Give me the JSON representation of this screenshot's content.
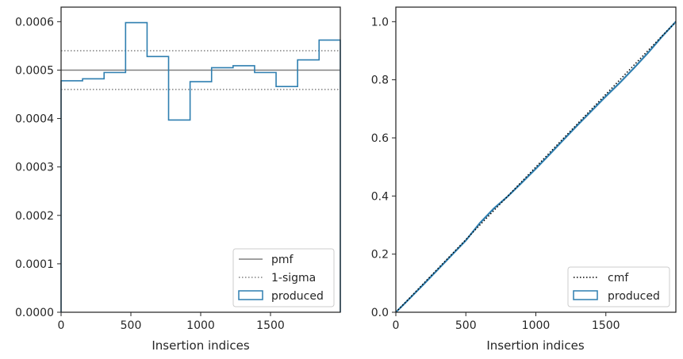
{
  "chart_data": [
    {
      "type": "histogram-step",
      "xlabel": "Insertion indices",
      "ylabel": "",
      "xlim": [
        0,
        2000
      ],
      "ylim": [
        0,
        0.00063
      ],
      "xticks": [
        0,
        500,
        1000,
        1500
      ],
      "xtick_labels": [
        "0",
        "500",
        "1000",
        "1500"
      ],
      "yticks": [
        0,
        0.0001,
        0.0002,
        0.0003,
        0.0004,
        0.0005,
        0.0006
      ],
      "ytick_labels": [
        "0.0000",
        "0.0001",
        "0.0002",
        "0.0003",
        "0.0004",
        "0.0005",
        "0.0006"
      ],
      "grid": false,
      "legend_position": "lower-right",
      "reference_lines": [
        {
          "name": "pmf",
          "y": 0.0005,
          "style": "solid",
          "color": "#808080"
        },
        {
          "name": "1-sigma",
          "y": 0.00054,
          "style": "dotted",
          "color": "#808080"
        },
        {
          "name": "1-sigma",
          "y": 0.00046,
          "style": "dotted",
          "color": "#808080"
        }
      ],
      "series": [
        {
          "name": "produced",
          "color": "#2f7fb0",
          "bin_edges": [
            0,
            154,
            308,
            462,
            616,
            770,
            924,
            1078,
            1232,
            1386,
            1540,
            1694,
            1848,
            2000
          ],
          "values": [
            0.000478,
            0.000482,
            0.000495,
            0.000598,
            0.000528,
            0.000397,
            0.000476,
            0.000505,
            0.000509,
            0.000495,
            0.000466,
            0.000521,
            0.000562
          ]
        }
      ],
      "legend": [
        "pmf",
        "1-sigma",
        "produced"
      ]
    },
    {
      "type": "line",
      "xlabel": "Insertion indices",
      "ylabel": "",
      "xlim": [
        0,
        2000
      ],
      "ylim": [
        0,
        1.05
      ],
      "xticks": [
        0,
        500,
        1000,
        1500
      ],
      "xtick_labels": [
        "0",
        "500",
        "1000",
        "1500"
      ],
      "yticks": [
        0,
        0.2,
        0.4,
        0.6,
        0.8,
        1.0
      ],
      "ytick_labels": [
        "0.0",
        "0.2",
        "0.4",
        "0.6",
        "0.8",
        "1.0"
      ],
      "grid": false,
      "legend_position": "lower-right",
      "series": [
        {
          "name": "cmf",
          "style": "dotted",
          "color": "#000000",
          "x": [
            0,
            2000
          ],
          "y": [
            0,
            1
          ]
        },
        {
          "name": "produced",
          "style": "step",
          "color": "#2f7fb0",
          "x": [
            0,
            100,
            200,
            300,
            400,
            500,
            600,
            700,
            800,
            900,
            1000,
            1100,
            1200,
            1300,
            1400,
            1500,
            1600,
            1700,
            1800,
            1900,
            2000
          ],
          "y": [
            0,
            0.048,
            0.097,
            0.147,
            0.197,
            0.247,
            0.307,
            0.357,
            0.399,
            0.446,
            0.494,
            0.544,
            0.595,
            0.645,
            0.694,
            0.743,
            0.79,
            0.84,
            0.892,
            0.948,
            1.0
          ]
        }
      ],
      "legend": [
        "cmf",
        "produced"
      ]
    }
  ]
}
